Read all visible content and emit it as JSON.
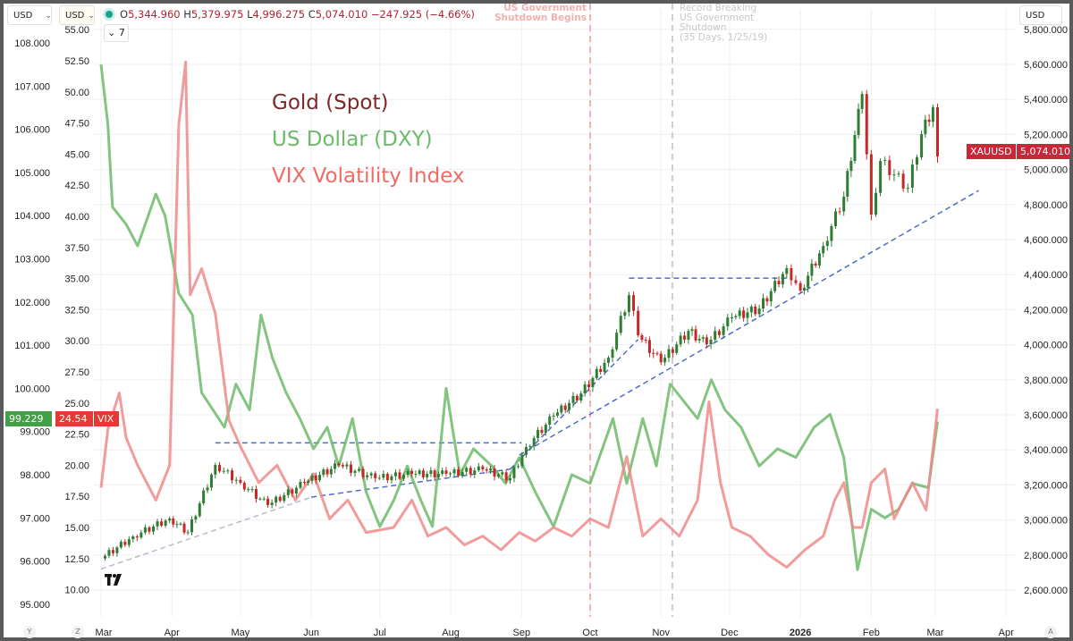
{
  "header": {
    "currency_left": "USD",
    "currency_left2": "USD",
    "currency_right": "USD",
    "ohlc": {
      "open_label": "O",
      "open": "5,344.960",
      "high_label": "H",
      "high": "5,379.975",
      "low_label": "L",
      "low": "4,996.275",
      "close_label": "C",
      "close": "5,074.010",
      "change": "−247.925 (−4.66%)"
    },
    "collapse_count": "7"
  },
  "legend": {
    "gold": "Gold (Spot)",
    "dxy": "US Dollar (DXY)",
    "vix": "VIX Volatility Index"
  },
  "annotations": {
    "shutdown_begins": "US Government\nShutdown Begins",
    "record_shutdown": "Record Breaking\nUS Government\nShutdown\n(35 Days, 1/25/19)"
  },
  "price_tags": {
    "dxy_value": "99.229",
    "vix_value": "24.54",
    "vix_symbol": "VIX",
    "gold_symbol": "XAUUSD",
    "gold_value": "5,074.010"
  },
  "axis_buttons": {
    "y": "Y",
    "z": "Z",
    "a": "A"
  },
  "colors": {
    "gold_label": "#7a2a2a",
    "dxy": "#6dbb6a",
    "vix": "#f08a8a",
    "vix_tag": "#e53935",
    "dxy_tag": "#43a047",
    "gold_tag": "#c62838",
    "candle_up": "#2e7d32",
    "candle_down": "#c62828",
    "trend": "#4a6fc4",
    "grid": "#efefef"
  },
  "chart_data": {
    "type": "line",
    "x_axis": {
      "type": "date",
      "ticks": [
        {
          "date": "2025-03-01",
          "label": "Mar"
        },
        {
          "date": "2025-04-01",
          "label": "Apr"
        },
        {
          "date": "2025-05-01",
          "label": "May"
        },
        {
          "date": "2025-06-01",
          "label": "Jun"
        },
        {
          "date": "2025-07-01",
          "label": "Jul"
        },
        {
          "date": "2025-08-01",
          "label": "Aug"
        },
        {
          "date": "2025-09-01",
          "label": "Sep"
        },
        {
          "date": "2025-10-01",
          "label": "Oct"
        },
        {
          "date": "2025-11-01",
          "label": "Nov"
        },
        {
          "date": "2025-12-01",
          "label": "Dec"
        },
        {
          "date": "2026-01-01",
          "label": "2026"
        },
        {
          "date": "2026-02-01",
          "label": "Feb"
        },
        {
          "date": "2026-03-01",
          "label": "Mar"
        },
        {
          "date": "2026-04-01",
          "label": "Apr"
        }
      ]
    },
    "axes": {
      "dxy": {
        "side": "left-outer",
        "range": [
          95,
          108
        ],
        "ticks": [
          "108.000",
          "107.000",
          "106.000",
          "105.000",
          "104.000",
          "103.000",
          "102.000",
          "101.000",
          "100.000",
          "99.000",
          "98.000",
          "97.000",
          "96.000",
          "95.000"
        ]
      },
      "vix": {
        "side": "left-inner",
        "range": [
          10,
          55
        ],
        "ticks": [
          "55.00",
          "52.50",
          "50.00",
          "47.50",
          "45.00",
          "42.50",
          "40.00",
          "37.50",
          "35.00",
          "32.50",
          "30.00",
          "27.50",
          "25.00",
          "22.50",
          "20.00",
          "17.50",
          "15.00",
          "12.50",
          "10.00"
        ]
      },
      "gold": {
        "side": "right",
        "range": [
          2600,
          5800
        ],
        "ticks": [
          "5,800.000",
          "5,600.000",
          "5,400.000",
          "5,200.000",
          "5,000.000",
          "4,800.000",
          "4,600.000",
          "4,400.000",
          "4,200.000",
          "4,000.000",
          "3,800.000",
          "3,600.000",
          "3,400.000",
          "3,200.000",
          "3,000.000",
          "2,800.000",
          "2,600.000"
        ]
      }
    },
    "grid": true,
    "series": [
      {
        "name": "Gold (Spot)",
        "axis": "gold",
        "style": "candlestick",
        "points": [
          [
            "2025-03-01",
            2780
          ],
          [
            "2025-03-15",
            2906
          ],
          [
            "2025-03-31",
            3008
          ],
          [
            "2025-04-08",
            2930
          ],
          [
            "2025-04-20",
            3314
          ],
          [
            "2025-05-01",
            3212
          ],
          [
            "2025-05-13",
            3085
          ],
          [
            "2025-05-29",
            3212
          ],
          [
            "2025-06-13",
            3314
          ],
          [
            "2025-06-29",
            3238
          ],
          [
            "2025-07-15",
            3263
          ],
          [
            "2025-07-30",
            3263
          ],
          [
            "2025-08-15",
            3289
          ],
          [
            "2025-08-27",
            3238
          ],
          [
            "2025-09-03",
            3416
          ],
          [
            "2025-09-15",
            3595
          ],
          [
            "2025-09-27",
            3722
          ],
          [
            "2025-10-09",
            3926
          ],
          [
            "2025-10-18",
            4283
          ],
          [
            "2025-10-22",
            4054
          ],
          [
            "2025-11-01",
            3900
          ],
          [
            "2025-11-13",
            4079
          ],
          [
            "2025-11-21",
            4003
          ],
          [
            "2025-12-02",
            4156
          ],
          [
            "2025-12-14",
            4207
          ],
          [
            "2025-12-26",
            4437
          ],
          [
            "2026-01-01",
            4309
          ],
          [
            "2026-01-11",
            4564
          ],
          [
            "2026-01-20",
            4845
          ],
          [
            "2026-01-28",
            5431
          ],
          [
            "2026-02-01",
            4743
          ],
          [
            "2026-02-05",
            5049
          ],
          [
            "2026-02-11",
            4972
          ],
          [
            "2026-02-17",
            4896
          ],
          [
            "2026-02-23",
            5202
          ],
          [
            "2026-02-28",
            5355
          ],
          [
            "2026-03-02",
            5074.01
          ]
        ]
      },
      {
        "name": "US Dollar (DXY)",
        "axis": "dxy",
        "style": "line",
        "points": [
          [
            "2025-03-01",
            107.5
          ],
          [
            "2025-03-04",
            106.1
          ],
          [
            "2025-03-06",
            104.2
          ],
          [
            "2025-03-12",
            103.8
          ],
          [
            "2025-03-17",
            103.3
          ],
          [
            "2025-03-25",
            104.5
          ],
          [
            "2025-03-29",
            104.0
          ],
          [
            "2025-04-04",
            102.2
          ],
          [
            "2025-04-10",
            101.7
          ],
          [
            "2025-04-14",
            99.9
          ],
          [
            "2025-04-24",
            99.1
          ],
          [
            "2025-04-29",
            100.1
          ],
          [
            "2025-05-05",
            99.5
          ],
          [
            "2025-05-10",
            101.7
          ],
          [
            "2025-05-15",
            100.7
          ],
          [
            "2025-05-21",
            99.9
          ],
          [
            "2025-05-27",
            99.3
          ],
          [
            "2025-06-02",
            98.6
          ],
          [
            "2025-06-08",
            99.1
          ],
          [
            "2025-06-13",
            98.2
          ],
          [
            "2025-06-19",
            99.3
          ],
          [
            "2025-06-25",
            97.6
          ],
          [
            "2025-07-01",
            96.8
          ],
          [
            "2025-07-07",
            97.4
          ],
          [
            "2025-07-13",
            98.2
          ],
          [
            "2025-07-19",
            97.4
          ],
          [
            "2025-07-24",
            96.8
          ],
          [
            "2025-07-30",
            100.0
          ],
          [
            "2025-08-05",
            98.0
          ],
          [
            "2025-08-11",
            98.6
          ],
          [
            "2025-08-19",
            98.2
          ],
          [
            "2025-08-25",
            97.8
          ],
          [
            "2025-08-31",
            98.4
          ],
          [
            "2025-09-07",
            97.6
          ],
          [
            "2025-09-15",
            96.8
          ],
          [
            "2025-09-23",
            98.0
          ],
          [
            "2025-10-01",
            97.8
          ],
          [
            "2025-10-11",
            99.3
          ],
          [
            "2025-10-17",
            97.8
          ],
          [
            "2025-10-24",
            99.3
          ],
          [
            "2025-10-30",
            98.2
          ],
          [
            "2025-11-05",
            100.1
          ],
          [
            "2025-11-11",
            99.7
          ],
          [
            "2025-11-17",
            99.3
          ],
          [
            "2025-11-23",
            100.2
          ],
          [
            "2025-11-29",
            99.5
          ],
          [
            "2025-12-06",
            99.1
          ],
          [
            "2025-12-14",
            98.2
          ],
          [
            "2025-12-22",
            98.6
          ],
          [
            "2025-12-30",
            98.4
          ],
          [
            "2026-01-07",
            99.1
          ],
          [
            "2026-01-14",
            99.4
          ],
          [
            "2026-01-20",
            98.4
          ],
          [
            "2026-01-26",
            95.8
          ],
          [
            "2026-02-01",
            97.2
          ],
          [
            "2026-02-07",
            97.0
          ],
          [
            "2026-02-13",
            97.2
          ],
          [
            "2026-02-19",
            97.8
          ],
          [
            "2026-02-26",
            97.7
          ],
          [
            "2026-03-02",
            99.229
          ]
        ]
      },
      {
        "name": "VIX Volatility Index",
        "axis": "vix",
        "style": "line",
        "points": [
          [
            "2025-03-01",
            18.2
          ],
          [
            "2025-03-04",
            22.9
          ],
          [
            "2025-03-09",
            25.8
          ],
          [
            "2025-03-12",
            22.2
          ],
          [
            "2025-03-17",
            20.0
          ],
          [
            "2025-03-25",
            17.2
          ],
          [
            "2025-03-31",
            20.0
          ],
          [
            "2025-04-04",
            47.3
          ],
          [
            "2025-04-07",
            52.4
          ],
          [
            "2025-04-09",
            33.7
          ],
          [
            "2025-04-14",
            35.8
          ],
          [
            "2025-04-20",
            32.2
          ],
          [
            "2025-04-26",
            23.6
          ],
          [
            "2025-05-01",
            21.5
          ],
          [
            "2025-05-09",
            18.6
          ],
          [
            "2025-05-17",
            20.0
          ],
          [
            "2025-05-25",
            17.2
          ],
          [
            "2025-06-02",
            19.3
          ],
          [
            "2025-06-09",
            15.7
          ],
          [
            "2025-06-17",
            17.2
          ],
          [
            "2025-06-25",
            14.6
          ],
          [
            "2025-07-07",
            15.0
          ],
          [
            "2025-07-15",
            17.2
          ],
          [
            "2025-07-22",
            14.3
          ],
          [
            "2025-07-30",
            15.0
          ],
          [
            "2025-08-07",
            13.6
          ],
          [
            "2025-08-15",
            14.3
          ],
          [
            "2025-08-23",
            13.2
          ],
          [
            "2025-08-31",
            14.6
          ],
          [
            "2025-09-07",
            13.9
          ],
          [
            "2025-09-15",
            15.0
          ],
          [
            "2025-09-23",
            14.3
          ],
          [
            "2025-10-01",
            15.7
          ],
          [
            "2025-10-09",
            15.0
          ],
          [
            "2025-10-17",
            20.7
          ],
          [
            "2025-10-24",
            14.3
          ],
          [
            "2025-11-01",
            15.7
          ],
          [
            "2025-11-09",
            14.3
          ],
          [
            "2025-11-17",
            17.2
          ],
          [
            "2025-11-22",
            25.1
          ],
          [
            "2025-11-27",
            18.6
          ],
          [
            "2025-12-02",
            15.0
          ],
          [
            "2025-12-10",
            14.3
          ],
          [
            "2025-12-18",
            12.8
          ],
          [
            "2025-12-26",
            11.8
          ],
          [
            "2026-01-03",
            13.2
          ],
          [
            "2026-01-11",
            14.3
          ],
          [
            "2026-01-16",
            17.2
          ],
          [
            "2026-01-20",
            18.6
          ],
          [
            "2026-01-24",
            15.0
          ],
          [
            "2026-01-28",
            15.0
          ],
          [
            "2026-02-01",
            18.6
          ],
          [
            "2026-02-07",
            19.7
          ],
          [
            "2026-02-11",
            15.7
          ],
          [
            "2026-02-19",
            18.6
          ],
          [
            "2026-02-25",
            16.4
          ],
          [
            "2026-03-02",
            24.54
          ]
        ]
      }
    ],
    "trendlines": [
      {
        "axis": "gold",
        "from": [
          "2025-03-01",
          2720
        ],
        "to": [
          "2025-06-01",
          3130
        ],
        "color": "grey"
      },
      {
        "axis": "gold",
        "from": [
          "2025-06-01",
          3130
        ],
        "to": [
          "2025-08-27",
          3290
        ],
        "color": "blue"
      },
      {
        "axis": "gold",
        "from": [
          "2025-04-20",
          3440
        ],
        "to": [
          "2025-09-01",
          3440
        ],
        "color": "blue"
      },
      {
        "axis": "gold",
        "from": [
          "2025-08-27",
          3290
        ],
        "to": [
          "2025-10-22",
          4030
        ],
        "color": "blue"
      },
      {
        "axis": "gold",
        "from": [
          "2025-08-31",
          3370
        ],
        "to": [
          "2026-03-20",
          4880
        ],
        "color": "blue"
      },
      {
        "axis": "gold",
        "from": [
          "2025-10-18",
          4380
        ],
        "to": [
          "2025-12-28",
          4380
        ],
        "color": "blue"
      }
    ],
    "event_lines": [
      {
        "date": "2025-10-01",
        "color": "red",
        "label_key": "shutdown_begins"
      },
      {
        "date": "2025-11-06",
        "color": "grey",
        "label_key": "record_shutdown"
      }
    ]
  }
}
